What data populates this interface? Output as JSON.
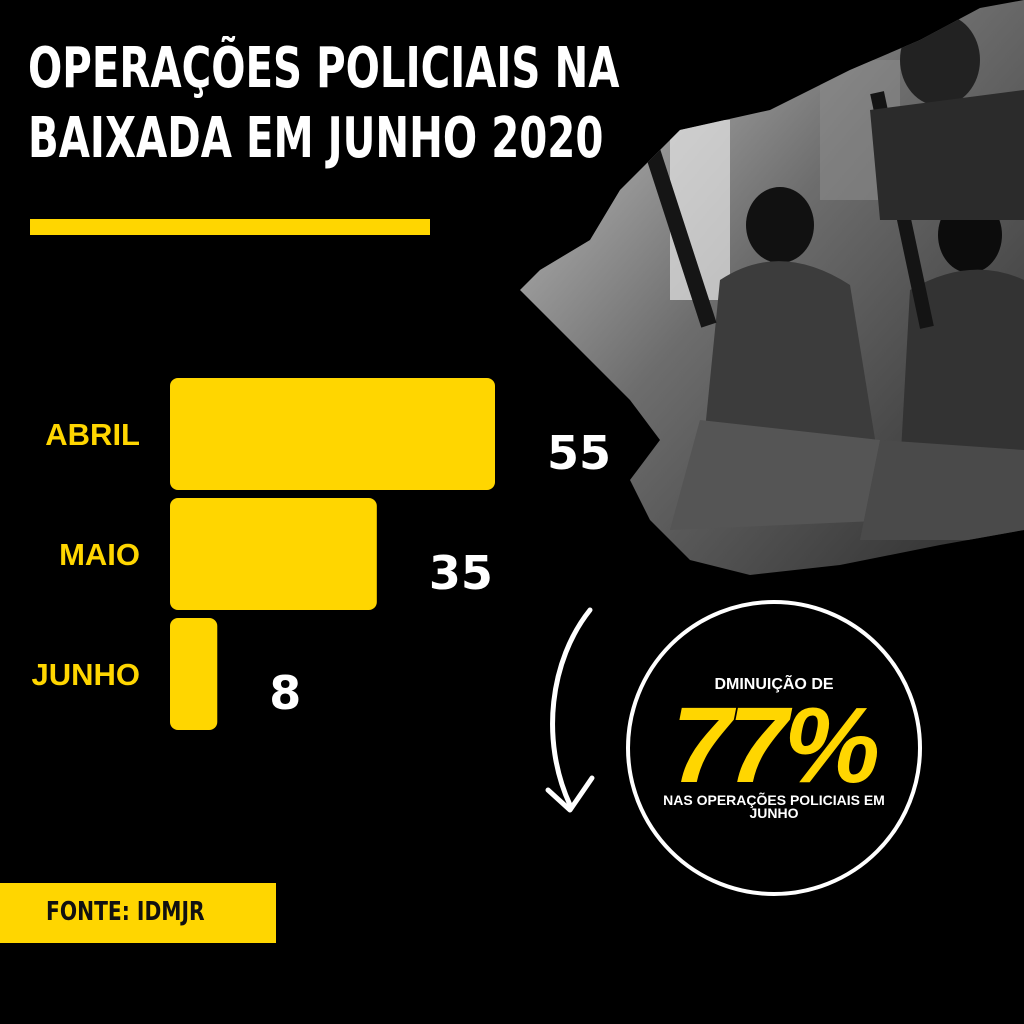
{
  "title": {
    "line1": "OPERAÇÕES POLICIAIS NA",
    "line2": "BAIXADA EM JUNHO 2020"
  },
  "colors": {
    "accent": "#FFD600",
    "background": "#000000",
    "text": "#FFFFFF"
  },
  "chart_data": {
    "type": "bar",
    "orientation": "horizontal",
    "categories": [
      "ABRIL",
      "MAIO",
      "JUNHO"
    ],
    "values": [
      55,
      35,
      8
    ],
    "title": "",
    "xlabel": "",
    "ylabel": "",
    "xlim": [
      0,
      55
    ],
    "grid": false,
    "legend": "none"
  },
  "badge": {
    "top_text": "DMINUIÇÃO DE",
    "percent": "77%",
    "bottom_text": "NAS OPERAÇÕES POLICIAIS EM JUNHO"
  },
  "source": {
    "label": "FONTE: IDMJR"
  },
  "photo": {
    "icon": "armed-police-photo"
  },
  "arrow": {
    "icon": "curved-down-arrow-icon"
  }
}
